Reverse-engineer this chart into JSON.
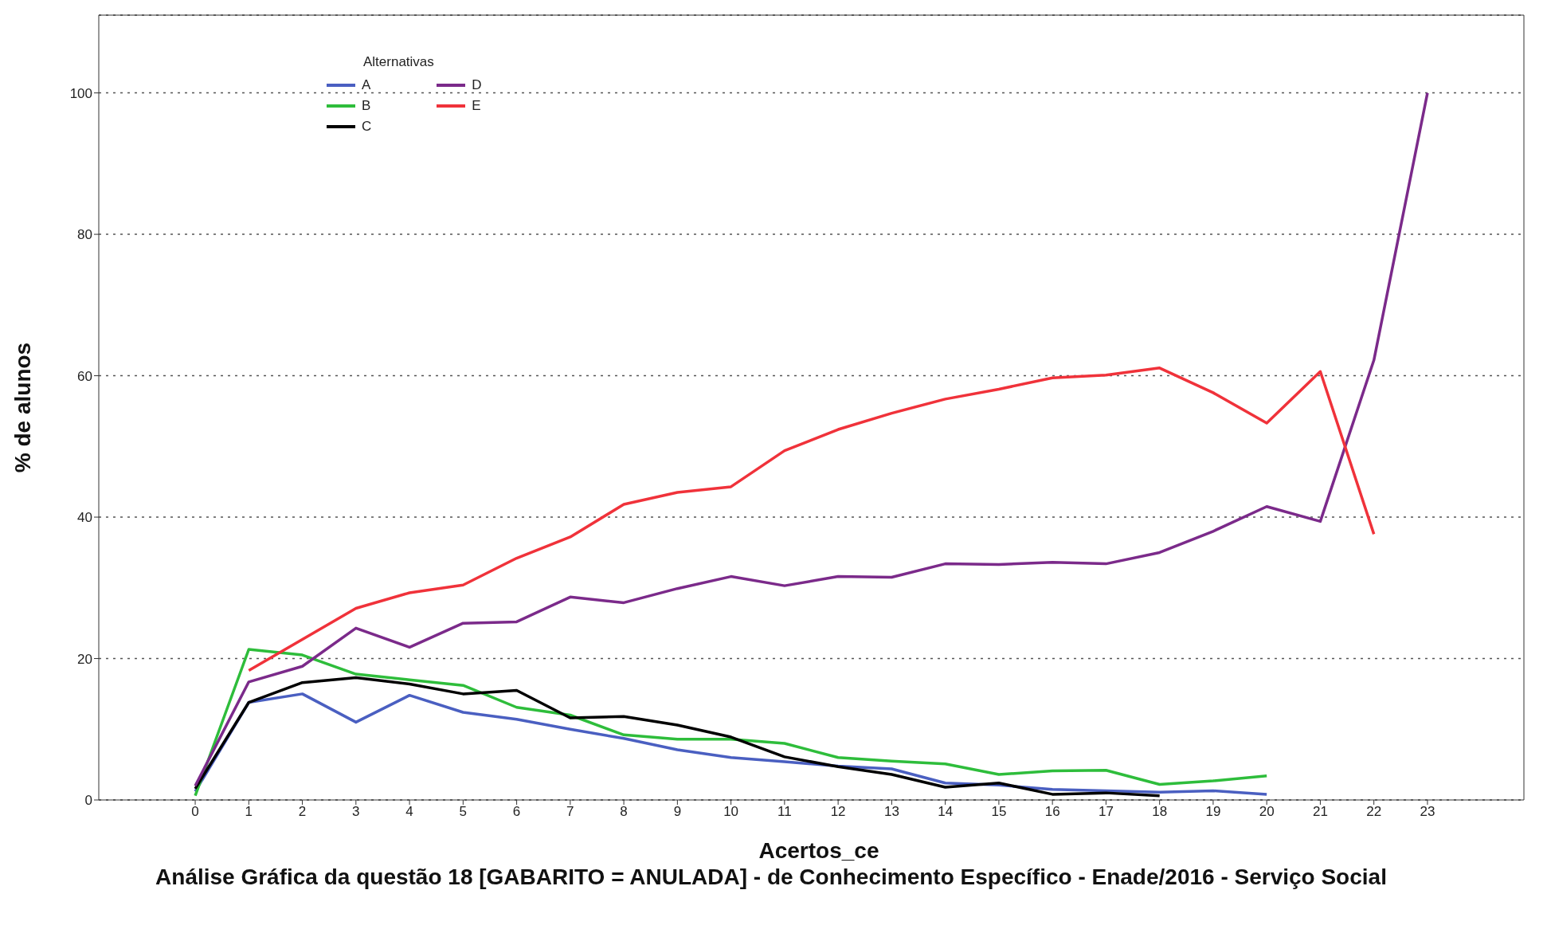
{
  "chart_data": {
    "type": "line",
    "title": "Análise Gráfica da questão 18 [GABARITO = ANULADA] - de Conhecimento Específico - Enade/2016 - Serviço Social",
    "xlabel": "Acertos_ce",
    "ylabel": "% de alunos",
    "legend_title": "Alternativas",
    "x": [
      0,
      1,
      2,
      3,
      4,
      5,
      6,
      7,
      8,
      9,
      10,
      11,
      12,
      13,
      14,
      15,
      16,
      17,
      18,
      19,
      20,
      21,
      22,
      23
    ],
    "series": [
      {
        "name": "A",
        "color": "#4a5fc1",
        "values": [
          1.2,
          13.8,
          15,
          11,
          14.8,
          12.4,
          11.4,
          10,
          8.7,
          7.1,
          6,
          5.4,
          4.8,
          4.4,
          2.4,
          2.1,
          1.5,
          1.3,
          1.1,
          1.3,
          0.8,
          null,
          null,
          null
        ]
      },
      {
        "name": "B",
        "color": "#2ebd3b",
        "values": [
          0.6,
          21.3,
          20.5,
          17.8,
          17,
          16.2,
          13.1,
          12,
          9.2,
          8.6,
          8.6,
          8,
          6,
          5.5,
          5.1,
          3.6,
          4.1,
          4.2,
          2.2,
          2.7,
          3.4,
          null,
          null,
          null
        ]
      },
      {
        "name": "C",
        "color": "#000000",
        "values": [
          1.6,
          13.8,
          16.6,
          17.3,
          16.4,
          15,
          15.5,
          11.6,
          11.8,
          10.6,
          8.9,
          6.1,
          4.7,
          3.6,
          1.8,
          2.4,
          0.8,
          1,
          0.6,
          null,
          null,
          null,
          null,
          null
        ]
      },
      {
        "name": "D",
        "color": "#7b2a8a",
        "values": [
          2,
          16.7,
          18.9,
          24.3,
          21.6,
          25,
          25.2,
          28.7,
          27.9,
          29.9,
          31.6,
          30.3,
          31.6,
          31.5,
          33.4,
          33.3,
          33.6,
          33.4,
          35,
          38,
          41.5,
          39.4,
          62.2,
          100
        ]
      },
      {
        "name": "E",
        "color": "#f0323a",
        "values": [
          null,
          18.3,
          22.7,
          27.1,
          29.3,
          30.4,
          34.2,
          37.2,
          41.8,
          43.5,
          44.3,
          49.4,
          52.4,
          54.7,
          56.7,
          58.1,
          59.7,
          60.1,
          61.1,
          57.6,
          53.3,
          60.6,
          37.6,
          null
        ]
      }
    ],
    "xlim": [
      -1.8,
      24.8
    ],
    "xticks": [
      0,
      1,
      2,
      3,
      4,
      5,
      6,
      7,
      8,
      9,
      10,
      11,
      12,
      13,
      14,
      15,
      16,
      17,
      18,
      19,
      20,
      21,
      22,
      23
    ],
    "ylim": [
      0,
      111
    ],
    "yticks": [
      0,
      20,
      40,
      60,
      80,
      100
    ],
    "grid": "y",
    "legend": "top left",
    "marker": "none",
    "line_style": "solid"
  }
}
